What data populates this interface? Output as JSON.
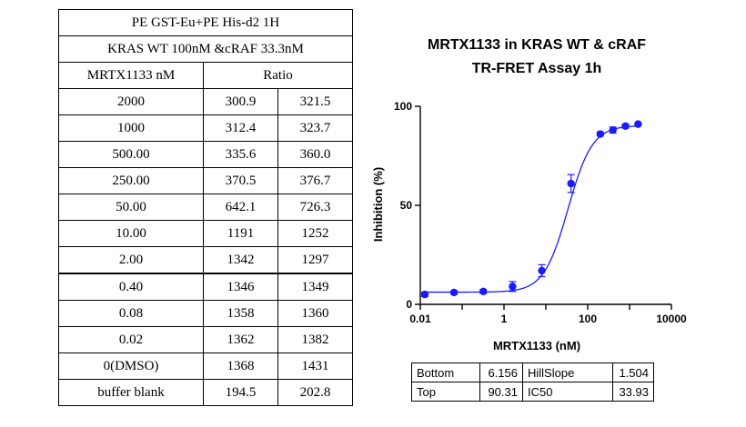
{
  "table": {
    "title_line1": "PE GST-Eu+PE His-d2 1H",
    "title_line2": "KRAS WT 100nM &cRAF 33.3nM",
    "col_conc": "MRTX1133 nM",
    "col_ratio": "Ratio",
    "rows": [
      {
        "conc": "2000",
        "r1": "300.9",
        "r2": "321.5"
      },
      {
        "conc": "1000",
        "r1": "312.4",
        "r2": "323.7"
      },
      {
        "conc": "500.00",
        "r1": "335.6",
        "r2": "360.0"
      },
      {
        "conc": "250.00",
        "r1": "370.5",
        "r2": "376.7"
      },
      {
        "conc": "50.00",
        "r1": "642.1",
        "r2": "726.3"
      },
      {
        "conc": "10.00",
        "r1": "1191",
        "r2": "1252"
      },
      {
        "conc": "2.00",
        "r1": "1342",
        "r2": "1297"
      },
      {
        "conc": "0.40",
        "r1": "1346",
        "r2": "1349"
      },
      {
        "conc": "0.08",
        "r1": "1358",
        "r2": "1360"
      },
      {
        "conc": "0.02",
        "r1": "1362",
        "r2": "1382"
      },
      {
        "conc": "0(DMSO)",
        "r1": "1368",
        "r2": "1431"
      },
      {
        "conc": "buffer blank",
        "r1": "194.5",
        "r2": "202.8"
      }
    ]
  },
  "chart_data": {
    "type": "scatter",
    "title": "MRTX1133 in KRAS WT & cRAF",
    "subtitle": "TR-FRET Assay 1h",
    "xlabel": "MRTX1133 (nM)",
    "ylabel": "Inhibition (%)",
    "xscale": "log",
    "xlim": [
      0.01,
      10000
    ],
    "ylim": [
      0,
      100
    ],
    "xticks": [
      0.01,
      1,
      100,
      10000
    ],
    "xtick_labels": [
      "0.01",
      "1",
      "100",
      "10000"
    ],
    "yticks": [
      0,
      50,
      100
    ],
    "ytick_labels": [
      "0",
      "50",
      "100"
    ],
    "series": [
      {
        "name": "Inhibition",
        "color": "#1a1aff",
        "x": [
          0.0128,
          0.064,
          0.32,
          1.6,
          8,
          40,
          200,
          400,
          800,
          1600
        ],
        "y": [
          5,
          6,
          6.5,
          9,
          17,
          61,
          86,
          88,
          90,
          91
        ],
        "err": [
          1,
          0.8,
          1,
          2.5,
          3,
          4.5,
          1,
          1.5,
          1,
          0.5
        ]
      }
    ],
    "fit": {
      "model": "4PL",
      "bottom": 6.156,
      "top": 90.31,
      "hillslope": 1.504,
      "ic50": 33.93
    }
  },
  "fit_table": {
    "bottom_label": "Bottom",
    "bottom_value": "6.156",
    "hill_label": "HillSlope",
    "hill_value": "1.504",
    "top_label": "Top",
    "top_value": "90.31",
    "ic50_label": "IC50",
    "ic50_value": "33.93"
  }
}
